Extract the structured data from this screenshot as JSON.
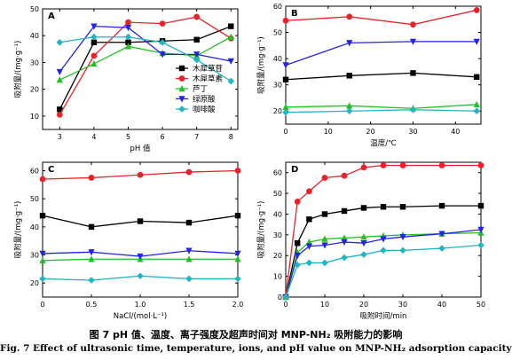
{
  "caption": {
    "zh": "图 7   pH 值、温度、离子强度及超声时间对 MNP-NH₂ 吸附能力的影响",
    "en": "Fig. 7   Effect of ultrasonic time, temperature, ions, and pH value on MNP-NH₂ adsorption capacity"
  },
  "colors": {
    "s1": "#000000",
    "s2": "#e8242a",
    "s3": "#22c023",
    "s4": "#2323e6",
    "s5": "#20b4c4",
    "axis": "#000000"
  },
  "chart_data": [
    {
      "type": "line",
      "panel": "A",
      "xlabel": "pH 值",
      "ylabel": "吸附量/(mg·g⁻¹)",
      "xlim": [
        2.5,
        8.2
      ],
      "ylim": [
        5,
        50
      ],
      "xticks": [
        3,
        4,
        5,
        6,
        7,
        8
      ],
      "yticks": [
        10,
        20,
        30,
        40,
        50
      ],
      "legend": "right",
      "series": [
        {
          "name": "木犀草苷",
          "color": "#000000",
          "marker": "square",
          "x": [
            3,
            4,
            5,
            6,
            7,
            8
          ],
          "y": [
            12.5,
            37.5,
            37.5,
            38,
            38.5,
            43.5
          ]
        },
        {
          "name": "木犀草素",
          "color": "#e8242a",
          "marker": "circle",
          "x": [
            3,
            4,
            5,
            6,
            7,
            8
          ],
          "y": [
            10.5,
            32.5,
            45,
            44.5,
            47,
            39
          ]
        },
        {
          "name": "芦丁",
          "color": "#22c023",
          "marker": "triangle-up",
          "x": [
            3,
            4,
            5,
            6,
            7,
            8
          ],
          "y": [
            23.5,
            29.5,
            36,
            33.5,
            32.5,
            39.5
          ]
        },
        {
          "name": "绿原酸",
          "color": "#2323e6",
          "marker": "triangle-down",
          "x": [
            3,
            4,
            5,
            6,
            7,
            8
          ],
          "y": [
            26.5,
            43.5,
            43,
            33,
            33,
            30.5
          ]
        },
        {
          "name": "咖啡酸",
          "color": "#20b4c4",
          "marker": "diamond",
          "x": [
            3,
            4,
            5,
            6,
            7,
            8
          ],
          "y": [
            37.5,
            39.5,
            39.5,
            37.5,
            31,
            23
          ]
        }
      ]
    },
    {
      "type": "line",
      "panel": "B",
      "xlabel": "温度/℃",
      "ylabel": "吸附量/(mg·g⁻¹)",
      "xlim": [
        0,
        46
      ],
      "ylim": [
        15,
        60
      ],
      "xticks": [
        0,
        10,
        20,
        30,
        40
      ],
      "yticks": [
        20,
        30,
        40,
        50,
        60
      ],
      "series": [
        {
          "color": "#000000",
          "marker": "square",
          "x": [
            0,
            15,
            30,
            45
          ],
          "y": [
            32,
            33.5,
            34.5,
            33
          ]
        },
        {
          "color": "#e8242a",
          "marker": "circle",
          "x": [
            0,
            15,
            30,
            45
          ],
          "y": [
            54.5,
            56,
            53,
            58.5
          ]
        },
        {
          "color": "#22c023",
          "marker": "triangle-up",
          "x": [
            0,
            15,
            30,
            45
          ],
          "y": [
            21.5,
            22,
            21,
            22.5
          ]
        },
        {
          "color": "#2323e6",
          "marker": "triangle-down",
          "x": [
            0,
            15,
            30,
            45
          ],
          "y": [
            37.5,
            46,
            46.5,
            46.5
          ]
        },
        {
          "color": "#20b4c4",
          "marker": "diamond",
          "x": [
            0,
            15,
            30,
            45
          ],
          "y": [
            19.5,
            20,
            20.5,
            20
          ]
        }
      ]
    },
    {
      "type": "line",
      "panel": "C",
      "xlabel": "NaCl/(mol·L⁻¹)",
      "ylabel": "吸附量/(mg·g⁻¹)",
      "xlim": [
        0,
        2.0
      ],
      "ylim": [
        15,
        63
      ],
      "xticks": [
        0,
        0.5,
        1.0,
        1.5,
        2.0
      ],
      "xtick_labels": [
        "0",
        "0.5",
        "1.0",
        "1.5",
        "2.0"
      ],
      "yticks": [
        20,
        30,
        40,
        50,
        60
      ],
      "series": [
        {
          "color": "#000000",
          "marker": "square",
          "x": [
            0,
            0.5,
            1.0,
            1.5,
            2.0
          ],
          "y": [
            44,
            40,
            42,
            41.5,
            44
          ]
        },
        {
          "color": "#e8242a",
          "marker": "circle",
          "x": [
            0,
            0.5,
            1.0,
            1.5,
            2.0
          ],
          "y": [
            57,
            57.5,
            58.5,
            59.5,
            60
          ]
        },
        {
          "color": "#22c023",
          "marker": "triangle-up",
          "x": [
            0,
            0.5,
            1.0,
            1.5,
            2.0
          ],
          "y": [
            28,
            28.5,
            28.5,
            28.5,
            28.5
          ]
        },
        {
          "color": "#2323e6",
          "marker": "triangle-down",
          "x": [
            0,
            0.5,
            1.0,
            1.5,
            2.0
          ],
          "y": [
            30.5,
            31,
            29.5,
            31.5,
            30.5
          ]
        },
        {
          "color": "#20b4c4",
          "marker": "diamond",
          "x": [
            0,
            0.5,
            1.0,
            1.5,
            2.0
          ],
          "y": [
            21.5,
            21,
            22.5,
            21.5,
            21.5
          ]
        }
      ]
    },
    {
      "type": "line",
      "panel": "D",
      "xlabel": "吸附时间/min",
      "ylabel": "吸附量/(mg·g⁻¹)",
      "xlim": [
        0,
        50
      ],
      "ylim": [
        0,
        65
      ],
      "xticks": [
        0,
        10,
        20,
        30,
        40,
        50
      ],
      "yticks": [
        0,
        10,
        20,
        30,
        40,
        50,
        60
      ],
      "series": [
        {
          "color": "#000000",
          "marker": "square",
          "x": [
            0,
            3,
            6,
            10,
            15,
            20,
            25,
            30,
            40,
            50
          ],
          "y": [
            0,
            26,
            37.5,
            40,
            41.5,
            43,
            43.5,
            43.5,
            44,
            44
          ]
        },
        {
          "color": "#e8242a",
          "marker": "circle",
          "x": [
            0,
            3,
            6,
            10,
            15,
            20,
            25,
            30,
            40,
            50
          ],
          "y": [
            0,
            46,
            51,
            57.5,
            58.5,
            62.5,
            63.5,
            63.5,
            63.5,
            63.5
          ]
        },
        {
          "color": "#22c023",
          "marker": "triangle-up",
          "x": [
            0,
            3,
            6,
            10,
            15,
            20,
            25,
            30,
            40,
            50
          ],
          "y": [
            0,
            21.5,
            26.5,
            28,
            28.5,
            29,
            29.5,
            30,
            30.5,
            31
          ]
        },
        {
          "color": "#2323e6",
          "marker": "triangle-down",
          "x": [
            0,
            3,
            6,
            10,
            15,
            20,
            25,
            30,
            40,
            50
          ],
          "y": [
            0,
            20,
            24.5,
            25,
            26.5,
            26,
            28,
            29,
            30.5,
            32.5
          ]
        },
        {
          "color": "#20b4c4",
          "marker": "diamond",
          "x": [
            0,
            3,
            6,
            10,
            15,
            20,
            25,
            30,
            40,
            50
          ],
          "y": [
            0,
            15.5,
            16.5,
            16.5,
            19,
            20.5,
            22.5,
            22.5,
            23.5,
            25
          ]
        }
      ]
    }
  ]
}
